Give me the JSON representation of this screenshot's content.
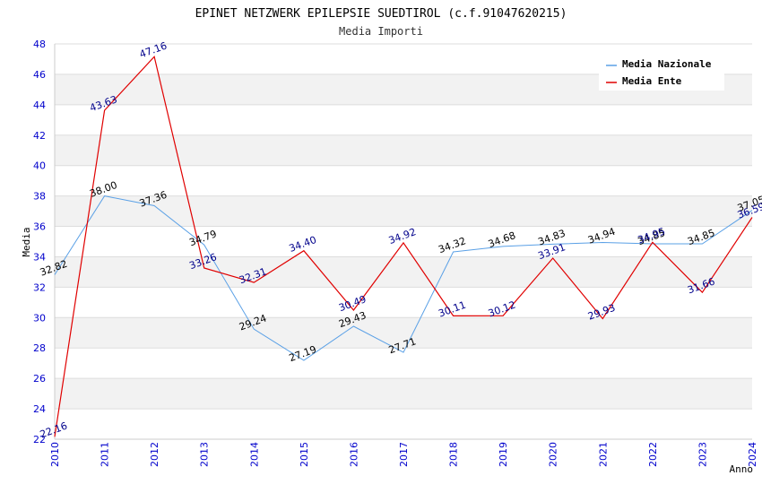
{
  "chart_data": {
    "type": "line",
    "title": "EPINET NETZWERK EPILEPSIE SUEDTIROL (c.f.91047620215)",
    "subtitle": "Media Importi",
    "xlabel": "Anno",
    "ylabel": "Media",
    "ylim": [
      22,
      48
    ],
    "ytick_step": 2,
    "grid": true,
    "legend_position": "top-right",
    "x": [
      2010,
      2011,
      2012,
      2013,
      2014,
      2015,
      2016,
      2017,
      2018,
      2019,
      2020,
      2021,
      2022,
      2023,
      2024
    ],
    "series": [
      {
        "name": "Media Nazionale",
        "color": "#5aa0e6",
        "label_color": "#000000",
        "values": [
          32.82,
          38.0,
          37.36,
          34.79,
          29.24,
          27.19,
          29.43,
          27.71,
          34.32,
          34.68,
          34.83,
          34.94,
          34.85,
          34.85,
          37.05
        ],
        "labels": [
          "32.82",
          "38.00",
          "37.36",
          "34.79",
          "29.24",
          "27.19",
          "29.43",
          "27.71",
          "34.32",
          "34.68",
          "34.83",
          "34.94",
          "34.85",
          "34.85",
          "37.05"
        ]
      },
      {
        "name": "Media Ente",
        "color": "#e00000",
        "label_color": "#00008b",
        "values": [
          22.16,
          43.63,
          47.16,
          33.26,
          32.31,
          34.4,
          30.49,
          34.92,
          30.11,
          30.12,
          33.91,
          29.93,
          34.95,
          31.66,
          36.59
        ],
        "labels": [
          "22.16",
          "43.63",
          "47.16",
          "33.26",
          "32.31",
          "34.40",
          "30.49",
          "34.92",
          "30.11",
          "30.12",
          "33.91",
          "29.93",
          "34.95",
          "31.66",
          "36.59"
        ]
      }
    ],
    "colors": {
      "tick_text": "#0000cc",
      "band": "#f2f2f2",
      "grid": "#dddddd",
      "axis": "#cccccc"
    }
  }
}
